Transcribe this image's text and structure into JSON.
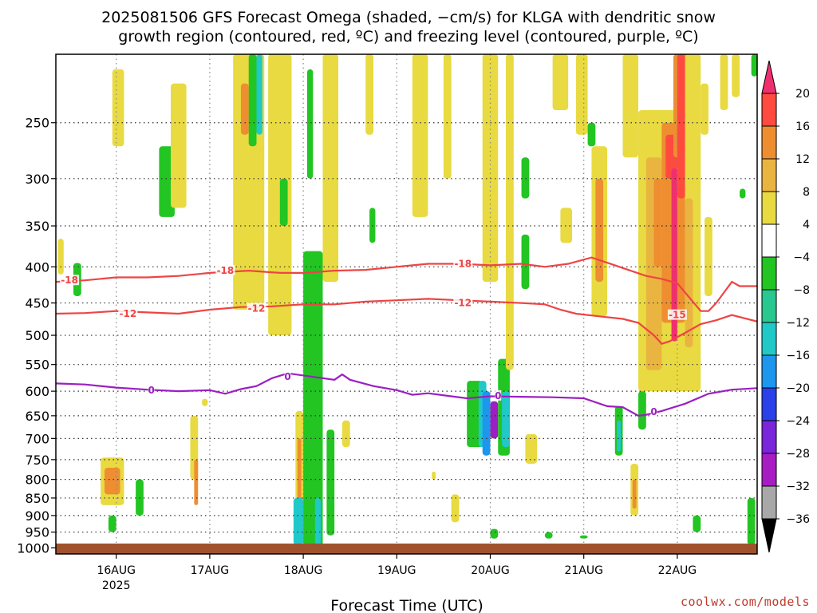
{
  "chart_data": {
    "type": "heatmap",
    "title_line1": "2025081506 GFS Forecast Omega (shaded, −cm/s) for KLGA with dendritic snow",
    "title_line2": "growth region (contoured, red, ºC) and freezing level (contoured, purple, ºC)",
    "xlabel": "Forecast Time (UTC)",
    "ylabel": "",
    "y_scale": "log (pressure)",
    "y_ticks": [
      250,
      300,
      350,
      400,
      450,
      500,
      550,
      600,
      650,
      700,
      750,
      800,
      850,
      900,
      950,
      1000
    ],
    "y_range_hpa": [
      1020,
      200
    ],
    "x_ticks": [
      "16AUG",
      "17AUG",
      "18AUG",
      "19AUG",
      "20AUG",
      "21AUG",
      "22AUG"
    ],
    "x_year_label": "2025",
    "x_range_hours": [
      -15.5,
      164.5
    ],
    "grid": true,
    "colorbar": {
      "labels": [
        "20",
        "16",
        "12",
        "8",
        "4",
        "−4",
        "−8",
        "−12",
        "−16",
        "−20",
        "−24",
        "−28",
        "−32",
        "−36"
      ],
      "colors": [
        "#f0306e",
        "#ff4a40",
        "#ee8e30",
        "#eab440",
        "#e8da40",
        "#ffffff",
        "#22c522",
        "#28c890",
        "#20c8c8",
        "#1d96ee",
        "#2a40e8",
        "#7a24dc",
        "#a81cc4",
        "#a8a8a8"
      ]
    },
    "contours": [
      {
        "label": "-18",
        "color": "#ee4444",
        "points": [
          [
            -15.5,
            420
          ],
          [
            -8,
            418
          ],
          [
            0,
            414
          ],
          [
            8,
            414
          ],
          [
            16,
            412
          ],
          [
            24,
            408
          ],
          [
            34,
            405
          ],
          [
            42,
            408
          ],
          [
            48,
            408
          ],
          [
            56,
            405
          ],
          [
            64,
            404
          ],
          [
            72,
            400
          ],
          [
            80,
            396
          ],
          [
            88,
            396
          ],
          [
            96,
            398
          ],
          [
            104,
            396
          ],
          [
            110,
            400
          ],
          [
            116,
            396
          ],
          [
            122,
            388
          ],
          [
            128,
            398
          ],
          [
            136,
            412
          ],
          [
            140,
            416
          ],
          [
            144,
            422
          ],
          [
            148,
            448
          ],
          [
            150,
            462
          ],
          [
            152,
            462
          ],
          [
            154,
            450
          ],
          [
            158,
            420
          ],
          [
            160,
            426
          ],
          [
            164.5,
            426
          ]
        ]
      },
      {
        "label": "-12",
        "color": "#ee4444",
        "points": [
          [
            -15.5,
            466
          ],
          [
            -8,
            465
          ],
          [
            0,
            462
          ],
          [
            8,
            464
          ],
          [
            16,
            466
          ],
          [
            24,
            460
          ],
          [
            32,
            456
          ],
          [
            40,
            455
          ],
          [
            48,
            452
          ],
          [
            56,
            452
          ],
          [
            64,
            448
          ],
          [
            72,
            446
          ],
          [
            80,
            444
          ],
          [
            88,
            446
          ],
          [
            96,
            448
          ],
          [
            104,
            450
          ],
          [
            110,
            452
          ],
          [
            114,
            460
          ],
          [
            118,
            466
          ],
          [
            124,
            470
          ],
          [
            130,
            474
          ],
          [
            134,
            480
          ],
          [
            138,
            500
          ],
          [
            140,
            514
          ],
          [
            142,
            510
          ],
          [
            146,
            496
          ],
          [
            150,
            482
          ],
          [
            154,
            476
          ],
          [
            158,
            468
          ],
          [
            164.5,
            478
          ]
        ]
      },
      {
        "label": "0",
        "color": "#9b1fc1",
        "points": [
          [
            -15.5,
            585
          ],
          [
            -8,
            587
          ],
          [
            0,
            593
          ],
          [
            8,
            597
          ],
          [
            16,
            600
          ],
          [
            24,
            598
          ],
          [
            28,
            605
          ],
          [
            32,
            596
          ],
          [
            36,
            590
          ],
          [
            40,
            575
          ],
          [
            44,
            566
          ],
          [
            50,
            572
          ],
          [
            56,
            578
          ],
          [
            58,
            568
          ],
          [
            60,
            578
          ],
          [
            66,
            590
          ],
          [
            72,
            598
          ],
          [
            76,
            607
          ],
          [
            80,
            604
          ],
          [
            86,
            610
          ],
          [
            90,
            614
          ],
          [
            96,
            610
          ],
          [
            104,
            611
          ],
          [
            112,
            612
          ],
          [
            120,
            614
          ],
          [
            126,
            630
          ],
          [
            130,
            632
          ],
          [
            134,
            650
          ],
          [
            136,
            648
          ],
          [
            140,
            640
          ],
          [
            146,
            625
          ],
          [
            152,
            605
          ],
          [
            158,
            597
          ],
          [
            164.5,
            594
          ]
        ]
      }
    ],
    "contour_label_positions": [
      {
        "text": "-18",
        "hour": -12,
        "hpa": 418,
        "color": "#ee4444"
      },
      {
        "text": "-18",
        "hour": 28,
        "hpa": 405,
        "color": "#ee4444"
      },
      {
        "text": "-18",
        "hour": 89,
        "hpa": 396,
        "color": "#ee4444"
      },
      {
        "text": "-12",
        "hour": 3,
        "hpa": 466,
        "color": "#ee4444"
      },
      {
        "text": "-12",
        "hour": 36,
        "hpa": 458,
        "color": "#ee4444"
      },
      {
        "text": "-12",
        "hour": 89,
        "hpa": 450,
        "color": "#ee4444"
      },
      {
        "text": "-15",
        "hour": 144,
        "hpa": 468,
        "color": "#ee4444"
      },
      {
        "text": "0",
        "hour": 9,
        "hpa": 598,
        "color": "#9b1fc1"
      },
      {
        "text": "0",
        "hour": 44,
        "hpa": 572,
        "color": "#9b1fc1"
      },
      {
        "text": "0",
        "hour": 98,
        "hpa": 609,
        "color": "#9b1fc1"
      },
      {
        "text": "0",
        "hour": 138,
        "hpa": 642,
        "color": "#9b1fc1"
      }
    ],
    "omega_cells": [
      {
        "h0": -15,
        "h1": -13.5,
        "p0": 365,
        "p1": 410,
        "color": "#e8da40"
      },
      {
        "h0": -11,
        "h1": -9,
        "p0": 395,
        "p1": 440,
        "color": "#22c522"
      },
      {
        "h0": -4,
        "h1": 2,
        "p0": 745,
        "p1": 870,
        "color": "#e8da40"
      },
      {
        "h0": -3,
        "h1": 1,
        "p0": 770,
        "p1": 840,
        "color": "#ee8e30"
      },
      {
        "h0": -2,
        "h1": 0,
        "p0": 900,
        "p1": 950,
        "color": "#22c522"
      },
      {
        "h0": -1,
        "h1": 2,
        "p0": 210,
        "p1": 270,
        "color": "#e8da40"
      },
      {
        "h0": 5,
        "h1": 7,
        "p0": 800,
        "p1": 900,
        "color": "#22c522"
      },
      {
        "h0": 11,
        "h1": 15,
        "p0": 270,
        "p1": 340,
        "color": "#22c522"
      },
      {
        "h0": 14,
        "h1": 18,
        "p0": 220,
        "p1": 330,
        "color": "#e8da40"
      },
      {
        "h0": 19,
        "h1": 21,
        "p0": 650,
        "p1": 800,
        "color": "#e8da40"
      },
      {
        "h0": 20,
        "h1": 21,
        "p0": 750,
        "p1": 870,
        "color": "#ee8e30"
      },
      {
        "h0": 30,
        "h1": 38,
        "p0": 200,
        "p1": 460,
        "color": "#e8da40"
      },
      {
        "h0": 32,
        "h1": 34,
        "p0": 220,
        "p1": 260,
        "color": "#ee8e30"
      },
      {
        "h0": 34,
        "h1": 36,
        "p0": 200,
        "p1": 270,
        "color": "#22c522"
      },
      {
        "h0": 36,
        "h1": 37.5,
        "p0": 200,
        "p1": 260,
        "color": "#20c8c8"
      },
      {
        "h0": 39,
        "h1": 45,
        "p0": 200,
        "p1": 500,
        "color": "#e8da40"
      },
      {
        "h0": 42,
        "h1": 44,
        "p0": 300,
        "p1": 350,
        "color": "#22c522"
      },
      {
        "h0": 46,
        "h1": 48,
        "p0": 640,
        "p1": 960,
        "color": "#e8da40"
      },
      {
        "h0": 46.5,
        "h1": 47.5,
        "p0": 700,
        "p1": 900,
        "color": "#ee8e30"
      },
      {
        "h0": 45.5,
        "h1": 48,
        "p0": 850,
        "p1": 990,
        "color": "#20c8c8"
      },
      {
        "h0": 48,
        "h1": 53,
        "p0": 380,
        "p1": 1000,
        "color": "#22c522"
      },
      {
        "h0": 51,
        "h1": 52.5,
        "p0": 850,
        "p1": 990,
        "color": "#20c8c8"
      },
      {
        "h0": 53,
        "h1": 57,
        "p0": 200,
        "p1": 420,
        "color": "#e8da40"
      },
      {
        "h0": 49,
        "h1": 50.5,
        "p0": 210,
        "p1": 300,
        "color": "#22c522"
      },
      {
        "h0": 54,
        "h1": 56,
        "p0": 680,
        "p1": 960,
        "color": "#22c522"
      },
      {
        "h0": 65,
        "h1": 66.5,
        "p0": 330,
        "p1": 370,
        "color": "#22c522"
      },
      {
        "h0": 64,
        "h1": 66,
        "p0": 200,
        "p1": 260,
        "color": "#e8da40"
      },
      {
        "h0": 76,
        "h1": 80,
        "p0": 200,
        "p1": 340,
        "color": "#e8da40"
      },
      {
        "h0": 84,
        "h1": 86,
        "p0": 200,
        "p1": 300,
        "color": "#e8da40"
      },
      {
        "h0": 90,
        "h1": 94,
        "p0": 580,
        "p1": 720,
        "color": "#22c522"
      },
      {
        "h0": 93,
        "h1": 95,
        "p0": 580,
        "p1": 720,
        "color": "#20c8c8"
      },
      {
        "h0": 94,
        "h1": 96,
        "p0": 600,
        "p1": 740,
        "color": "#1d96ee"
      },
      {
        "h0": 96,
        "h1": 98,
        "p0": 620,
        "p1": 700,
        "color": "#9b1fc1"
      },
      {
        "h0": 98,
        "h1": 101,
        "p0": 540,
        "p1": 740,
        "color": "#22c522"
      },
      {
        "h0": 99,
        "h1": 101,
        "p0": 600,
        "p1": 720,
        "color": "#20c8c8"
      },
      {
        "h0": 94,
        "h1": 98,
        "p0": 200,
        "p1": 420,
        "color": "#e8da40"
      },
      {
        "h0": 100,
        "h1": 102,
        "p0": 200,
        "p1": 560,
        "color": "#e8da40"
      },
      {
        "h0": 104,
        "h1": 106,
        "p0": 280,
        "p1": 320,
        "color": "#22c522"
      },
      {
        "h0": 104,
        "h1": 106,
        "p0": 360,
        "p1": 430,
        "color": "#22c522"
      },
      {
        "h0": 105,
        "h1": 108,
        "p0": 690,
        "p1": 760,
        "color": "#e8da40"
      },
      {
        "h0": 112,
        "h1": 116,
        "p0": 200,
        "p1": 240,
        "color": "#e8da40"
      },
      {
        "h0": 114,
        "h1": 117,
        "p0": 330,
        "p1": 370,
        "color": "#e8da40"
      },
      {
        "h0": 118,
        "h1": 121,
        "p0": 200,
        "p1": 260,
        "color": "#e8da40"
      },
      {
        "h0": 121,
        "h1": 123,
        "p0": 250,
        "p1": 270,
        "color": "#22c522"
      },
      {
        "h0": 122,
        "h1": 126,
        "p0": 270,
        "p1": 470,
        "color": "#e8da40"
      },
      {
        "h0": 123,
        "h1": 125,
        "p0": 300,
        "p1": 420,
        "color": "#ee8e30"
      },
      {
        "h0": 128,
        "h1": 130,
        "p0": 630,
        "p1": 740,
        "color": "#22c522"
      },
      {
        "h0": 128.5,
        "h1": 129.5,
        "p0": 660,
        "p1": 730,
        "color": "#20c8c8"
      },
      {
        "h0": 134,
        "h1": 136,
        "p0": 600,
        "p1": 680,
        "color": "#22c522"
      },
      {
        "h0": 132,
        "h1": 134,
        "p0": 760,
        "p1": 900,
        "color": "#e8da40"
      },
      {
        "h0": 132.5,
        "h1": 133.5,
        "p0": 800,
        "p1": 880,
        "color": "#ee8e30"
      },
      {
        "h0": 130,
        "h1": 134,
        "p0": 200,
        "p1": 280,
        "color": "#e8da40"
      },
      {
        "h0": 134,
        "h1": 148,
        "p0": 240,
        "p1": 600,
        "color": "#e8da40"
      },
      {
        "h0": 136,
        "h1": 140,
        "p0": 280,
        "p1": 560,
        "color": "#eab440"
      },
      {
        "h0": 138,
        "h1": 140,
        "p0": 300,
        "p1": 400,
        "color": "#ee8e30"
      },
      {
        "h0": 140,
        "h1": 146,
        "p0": 250,
        "p1": 480,
        "color": "#ee8e30"
      },
      {
        "h0": 141,
        "h1": 145,
        "p0": 260,
        "p1": 300,
        "color": "#ff4a40"
      },
      {
        "h0": 143,
        "h1": 147,
        "p0": 200,
        "p1": 280,
        "color": "#ee8e30"
      },
      {
        "h0": 142.5,
        "h1": 144,
        "p0": 290,
        "p1": 510,
        "color": "#f0306e"
      },
      {
        "h0": 144,
        "h1": 146,
        "p0": 200,
        "p1": 320,
        "color": "#ff4a40"
      },
      {
        "h0": 146,
        "h1": 150,
        "p0": 200,
        "p1": 600,
        "color": "#e8da40"
      },
      {
        "h0": 146,
        "h1": 148,
        "p0": 320,
        "p1": 520,
        "color": "#eab440"
      },
      {
        "h0": 148,
        "h1": 150,
        "p0": 900,
        "p1": 950,
        "color": "#22c522"
      },
      {
        "h0": 150,
        "h1": 152,
        "p0": 220,
        "p1": 260,
        "color": "#e8da40"
      },
      {
        "h0": 151,
        "h1": 153,
        "p0": 340,
        "p1": 440,
        "color": "#e8da40"
      },
      {
        "h0": 155,
        "h1": 157,
        "p0": 200,
        "p1": 240,
        "color": "#e8da40"
      },
      {
        "h0": 158,
        "h1": 160,
        "p0": 200,
        "p1": 230,
        "color": "#e8da40"
      },
      {
        "h0": 160,
        "h1": 161.5,
        "p0": 310,
        "p1": 320,
        "color": "#22c522"
      },
      {
        "h0": 162,
        "h1": 164,
        "p0": 850,
        "p1": 990,
        "color": "#22c522"
      },
      {
        "h0": 163,
        "h1": 164.5,
        "p0": 200,
        "p1": 215,
        "color": "#22c522"
      },
      {
        "h0": 22,
        "h1": 23.5,
        "p0": 615,
        "p1": 630,
        "color": "#e8da40"
      },
      {
        "h0": 58,
        "h1": 60,
        "p0": 660,
        "p1": 720,
        "color": "#e8da40"
      },
      {
        "h0": 81,
        "h1": 82,
        "p0": 780,
        "p1": 800,
        "color": "#e8da40"
      },
      {
        "h0": 86,
        "h1": 88,
        "p0": 840,
        "p1": 920,
        "color": "#e8da40"
      },
      {
        "h0": 110,
        "h1": 112,
        "p0": 950,
        "p1": 970,
        "color": "#22c522"
      },
      {
        "h0": 119,
        "h1": 121,
        "p0": 960,
        "p1": 970,
        "color": "#22c522"
      },
      {
        "h0": 96,
        "h1": 98,
        "p0": 940,
        "p1": 970,
        "color": "#22c522"
      }
    ],
    "surface_color": "#a0522d"
  },
  "credit": "coolwx.com/models"
}
